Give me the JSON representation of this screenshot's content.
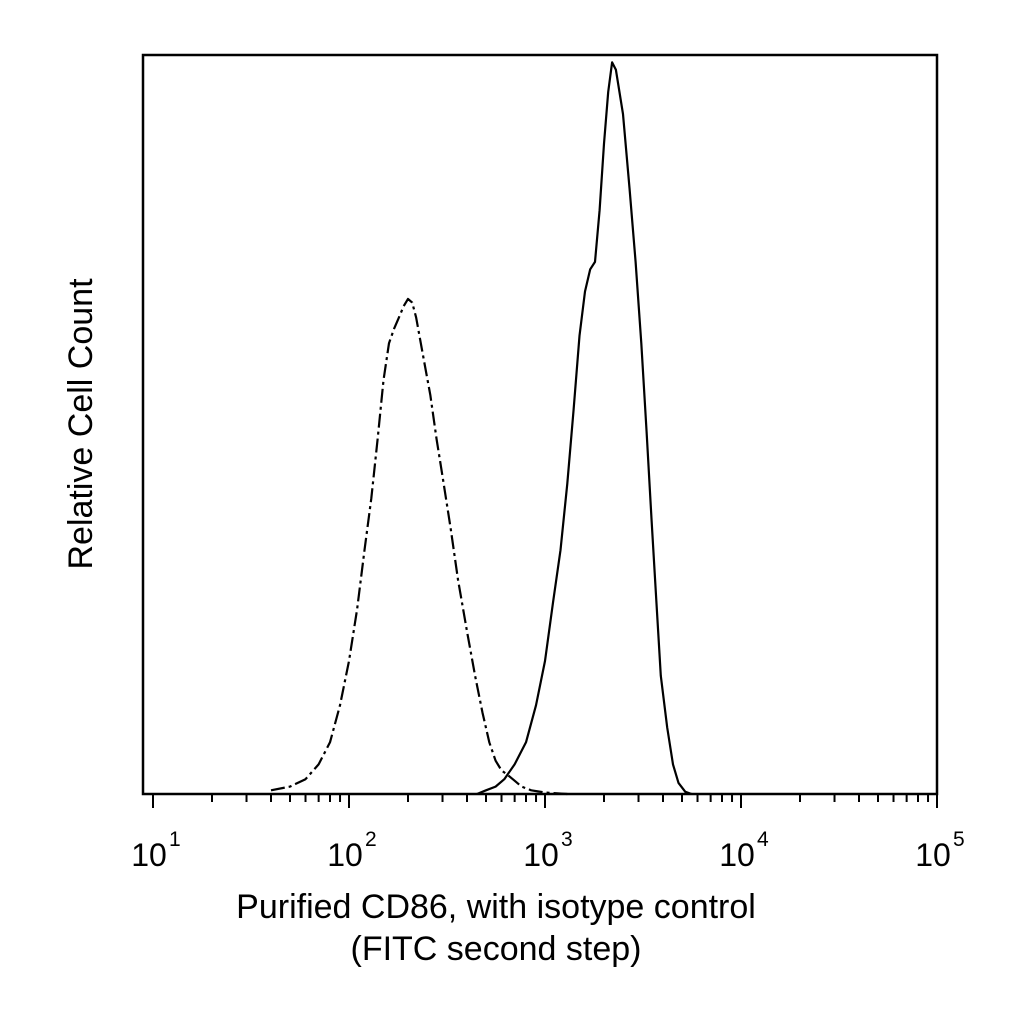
{
  "chart_data": {
    "type": "line",
    "title": "",
    "xlabel": "Purified CD86, with isotype control",
    "xlabel_line2": "(FITC second step)",
    "ylabel": "Relative Cell Count",
    "x_scale": "log",
    "xlim": [
      10,
      100000
    ],
    "ylim": [
      0,
      100
    ],
    "grid": false,
    "legend": "none",
    "x_tick_labels": [
      {
        "base": "10",
        "exp": "1",
        "value": 10
      },
      {
        "base": "10",
        "exp": "2",
        "value": 100
      },
      {
        "base": "10",
        "exp": "3",
        "value": 1000
      },
      {
        "base": "10",
        "exp": "4",
        "value": 10000
      },
      {
        "base": "10",
        "exp": "5",
        "value": 100000
      }
    ],
    "series": [
      {
        "style": "dashed",
        "color": "#000000",
        "points": [
          [
            40,
            0.5
          ],
          [
            50,
            1
          ],
          [
            60,
            2
          ],
          [
            70,
            4
          ],
          [
            80,
            7
          ],
          [
            90,
            12
          ],
          [
            100,
            18
          ],
          [
            110,
            25
          ],
          [
            120,
            33
          ],
          [
            130,
            40
          ],
          [
            140,
            48
          ],
          [
            150,
            56
          ],
          [
            160,
            61
          ],
          [
            170,
            63
          ],
          [
            180,
            64.5
          ],
          [
            190,
            66
          ],
          [
            200,
            67
          ],
          [
            210,
            66.5
          ],
          [
            220,
            64.5
          ],
          [
            240,
            59
          ],
          [
            260,
            54
          ],
          [
            280,
            48
          ],
          [
            300,
            43
          ],
          [
            330,
            36
          ],
          [
            360,
            29
          ],
          [
            400,
            22
          ],
          [
            440,
            16
          ],
          [
            480,
            11
          ],
          [
            520,
            7
          ],
          [
            560,
            4.5
          ],
          [
            600,
            3.2
          ],
          [
            650,
            2.5
          ],
          [
            700,
            1.8
          ],
          [
            760,
            1
          ],
          [
            850,
            0.5
          ],
          [
            1000,
            0.2
          ],
          [
            1300,
            0
          ]
        ]
      },
      {
        "style": "solid",
        "color": "#000000",
        "points": [
          [
            450,
            0
          ],
          [
            500,
            0.5
          ],
          [
            560,
            1
          ],
          [
            620,
            2
          ],
          [
            700,
            4
          ],
          [
            800,
            7
          ],
          [
            900,
            12
          ],
          [
            1000,
            18
          ],
          [
            1100,
            26
          ],
          [
            1200,
            33
          ],
          [
            1300,
            42
          ],
          [
            1400,
            52
          ],
          [
            1500,
            62
          ],
          [
            1600,
            68
          ],
          [
            1700,
            71
          ],
          [
            1800,
            72
          ],
          [
            1900,
            79
          ],
          [
            2000,
            88
          ],
          [
            2100,
            95
          ],
          [
            2200,
            99
          ],
          [
            2300,
            98
          ],
          [
            2500,
            92
          ],
          [
            2700,
            82
          ],
          [
            2900,
            72
          ],
          [
            3100,
            61
          ],
          [
            3300,
            49
          ],
          [
            3500,
            37
          ],
          [
            3700,
            26
          ],
          [
            3900,
            16
          ],
          [
            4200,
            9
          ],
          [
            4500,
            4
          ],
          [
            4800,
            1.5
          ],
          [
            5200,
            0.3
          ],
          [
            5600,
            0
          ]
        ]
      }
    ]
  }
}
